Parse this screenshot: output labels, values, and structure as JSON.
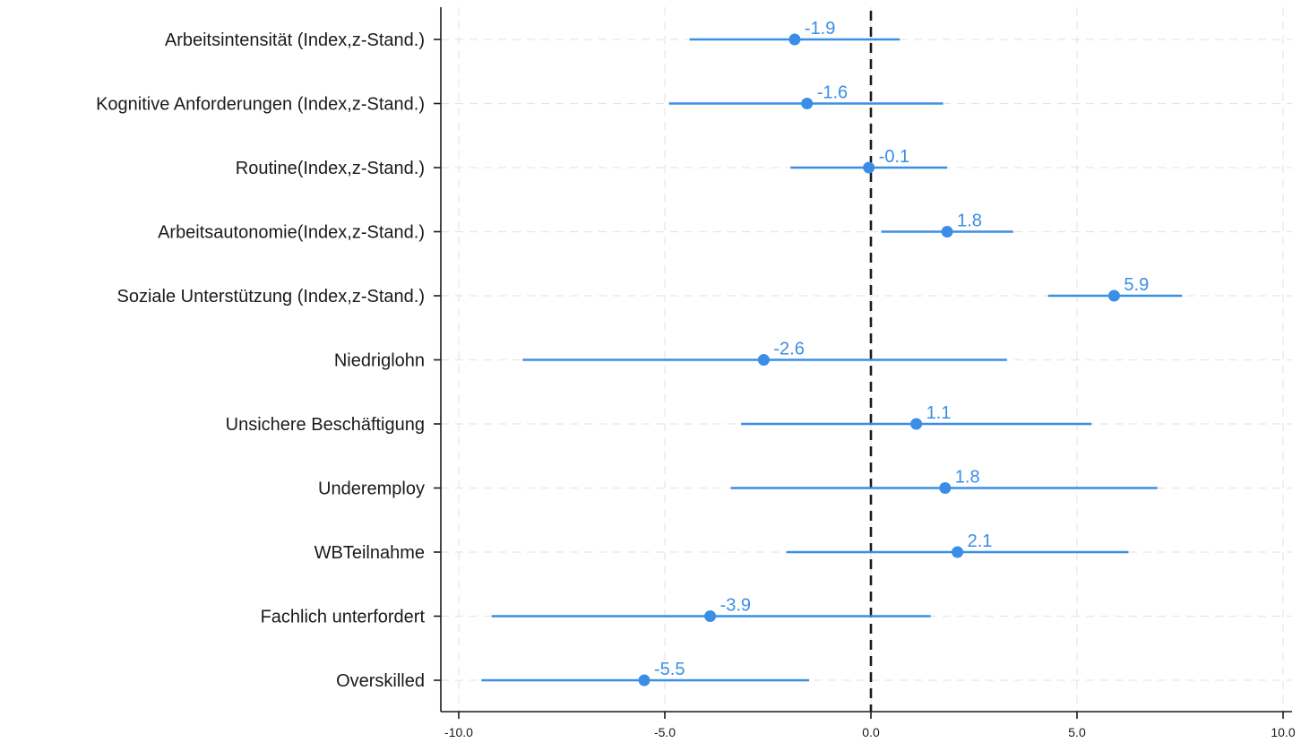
{
  "chart_data": {
    "type": "coefficient-plot",
    "title": "",
    "xlabel": "",
    "ylabel": "",
    "xlim": [
      -10.0,
      10.0
    ],
    "xticks": [
      -10.0,
      -5.0,
      0.0,
      5.0,
      10.0
    ],
    "xtick_labels": [
      "-10.0",
      "-5.0",
      "0.0",
      "5.0",
      "10.0"
    ],
    "reference_line": 0.0,
    "grid": true,
    "series_color": "#3a8ee6",
    "points": [
      {
        "label": "Arbeitsintensität (Index,z-Stand.)",
        "estimate": -1.85,
        "lower": -4.4,
        "upper": 0.7,
        "value_label": "-1.9"
      },
      {
        "label": "Kognitive Anforderungen (Index,z-Stand.)",
        "estimate": -1.55,
        "lower": -4.9,
        "upper": 1.75,
        "value_label": "-1.6"
      },
      {
        "label": "Routine(Index,z-Stand.)",
        "estimate": -0.05,
        "lower": -1.95,
        "upper": 1.85,
        "value_label": "-0.1"
      },
      {
        "label": "Arbeitsautonomie(Index,z-Stand.)",
        "estimate": 1.85,
        "lower": 0.25,
        "upper": 3.45,
        "value_label": "1.8"
      },
      {
        "label": "Soziale Unterstützung (Index,z-Stand.)",
        "estimate": 5.9,
        "lower": 4.3,
        "upper": 7.55,
        "value_label": "5.9"
      },
      {
        "label": "Niedriglohn",
        "estimate": -2.6,
        "lower": -8.45,
        "upper": 3.3,
        "value_label": "-2.6"
      },
      {
        "label": "Unsichere Beschäftigung",
        "estimate": 1.1,
        "lower": -3.15,
        "upper": 5.35,
        "value_label": "1.1"
      },
      {
        "label": "Underemploy",
        "estimate": 1.8,
        "lower": -3.4,
        "upper": 6.95,
        "value_label": "1.8"
      },
      {
        "label": "WBTeilnahme",
        "estimate": 2.1,
        "lower": -2.05,
        "upper": 6.25,
        "value_label": "2.1"
      },
      {
        "label": "Fachlich unterfordert",
        "estimate": -3.9,
        "lower": -9.2,
        "upper": 1.45,
        "value_label": "-3.9"
      },
      {
        "label": "Overskilled",
        "estimate": -5.5,
        "lower": -9.45,
        "upper": -1.5,
        "value_label": "-5.5"
      }
    ]
  }
}
